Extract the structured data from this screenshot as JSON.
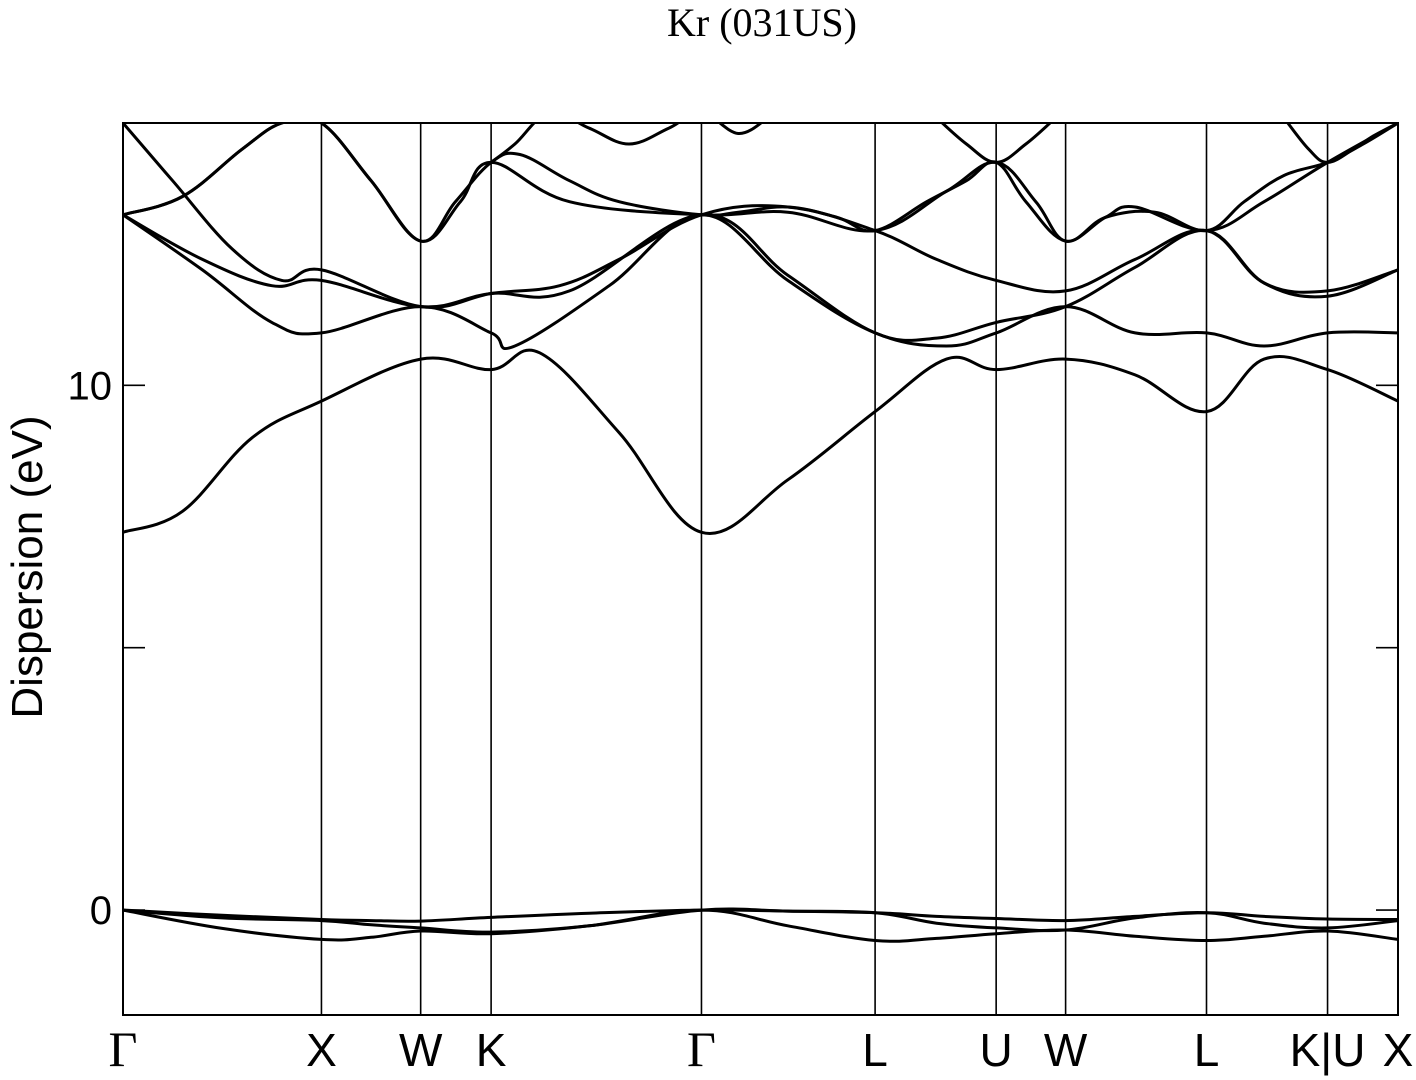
{
  "chart_data": {
    "type": "line",
    "title": "Kr (031US)",
    "ylabel": "Dispersion (eV)",
    "xlabel": "",
    "ylim": [
      -2,
      15
    ],
    "xlim": [
      0,
      12.85
    ],
    "grid": false,
    "y_ticks": [
      {
        "value": 0,
        "label": "0"
      },
      {
        "value": 5,
        "label": ""
      },
      {
        "value": 10,
        "label": "10"
      },
      {
        "value": 15,
        "label": ""
      }
    ],
    "k_points": [
      {
        "x": 0.0,
        "label": "Γ",
        "greek": true
      },
      {
        "x": 2.0,
        "label": "X",
        "greek": false
      },
      {
        "x": 3.0,
        "label": "W",
        "greek": false
      },
      {
        "x": 3.71,
        "label": "K",
        "greek": false
      },
      {
        "x": 5.83,
        "label": "Γ",
        "greek": true
      },
      {
        "x": 7.58,
        "label": "L",
        "greek": false
      },
      {
        "x": 8.8,
        "label": "U",
        "greek": false
      },
      {
        "x": 9.5,
        "label": "W",
        "greek": false
      },
      {
        "x": 10.92,
        "label": "L",
        "greek": false
      },
      {
        "x": 12.14,
        "label": "K|U",
        "greek": false
      },
      {
        "x": 12.85,
        "label": "X",
        "greek": false
      }
    ],
    "series": [
      {
        "name": "band-1",
        "x": [
          0.0,
          1.0,
          2.0,
          2.5,
          3.0,
          3.71,
          4.7,
          5.83,
          6.7,
          7.58,
          8.2,
          8.8,
          9.5,
          10.2,
          10.92,
          11.5,
          12.14,
          12.85
        ],
        "y": [
          0.0,
          -0.35,
          -0.56,
          -0.52,
          -0.4,
          -0.45,
          -0.3,
          0.0,
          -0.3,
          -0.58,
          -0.54,
          -0.45,
          -0.38,
          -0.5,
          -0.58,
          -0.5,
          -0.4,
          -0.56
        ]
      },
      {
        "name": "band-2",
        "x": [
          0.0,
          1.0,
          2.0,
          2.5,
          3.0,
          3.71,
          4.7,
          5.83,
          6.7,
          7.58,
          8.2,
          8.8,
          9.5,
          10.2,
          10.92,
          11.5,
          12.14,
          12.85
        ],
        "y": [
          0.0,
          -0.1,
          -0.18,
          -0.2,
          -0.21,
          -0.14,
          -0.06,
          0.0,
          -0.02,
          -0.05,
          -0.12,
          -0.16,
          -0.2,
          -0.12,
          -0.05,
          -0.12,
          -0.17,
          -0.18
        ]
      },
      {
        "name": "band-3",
        "x": [
          0.0,
          1.0,
          2.0,
          2.5,
          3.0,
          3.71,
          4.7,
          5.83,
          6.7,
          7.58,
          8.2,
          8.8,
          9.5,
          10.2,
          10.92,
          11.5,
          12.14,
          12.85
        ],
        "y": [
          0.0,
          -0.15,
          -0.2,
          -0.28,
          -0.34,
          -0.42,
          -0.3,
          0.0,
          -0.02,
          -0.05,
          -0.25,
          -0.34,
          -0.38,
          -0.15,
          -0.05,
          -0.25,
          -0.34,
          -0.2
        ]
      },
      {
        "name": "band-4",
        "x": [
          0.0,
          0.6,
          1.3,
          2.0,
          3.0,
          3.71,
          4.2,
          5.0,
          5.83,
          6.7,
          7.58,
          8.3,
          8.8,
          9.5,
          10.2,
          10.92,
          11.5,
          12.14,
          12.85
        ],
        "y": [
          7.2,
          7.6,
          9.0,
          9.7,
          10.5,
          10.3,
          10.62,
          9.1,
          7.2,
          8.2,
          9.5,
          10.5,
          10.3,
          10.5,
          10.2,
          9.5,
          10.5,
          10.3,
          9.7
        ]
      },
      {
        "name": "band-5",
        "x": [
          0.0,
          0.8,
          1.5,
          2.0,
          3.0,
          3.71,
          3.95,
          4.9,
          5.83,
          6.7,
          7.58,
          8.3,
          8.8,
          9.5,
          10.2,
          10.92,
          11.5,
          12.14,
          12.85
        ],
        "y": [
          13.25,
          12.2,
          11.2,
          11.0,
          11.5,
          11.0,
          10.75,
          11.9,
          13.25,
          12.0,
          11.0,
          10.75,
          11.0,
          11.5,
          11.0,
          11.0,
          10.75,
          11.0,
          11.0
        ]
      },
      {
        "name": "band-6",
        "x": [
          0.0,
          0.8,
          1.5,
          2.0,
          3.0,
          3.71,
          4.5,
          5.83,
          6.7,
          7.58,
          8.2,
          8.8,
          9.5,
          10.2,
          10.92,
          11.5,
          12.14,
          12.85
        ],
        "y": [
          13.25,
          12.4,
          11.9,
          12.0,
          11.5,
          11.75,
          11.8,
          13.25,
          12.1,
          11.0,
          10.9,
          11.2,
          11.5,
          12.25,
          12.95,
          11.95,
          11.7,
          12.2
        ]
      },
      {
        "name": "band-7",
        "x": [
          0.0,
          0.5,
          1.1,
          1.6,
          2.0,
          3.0,
          3.71,
          4.4,
          5.0,
          5.83,
          6.7,
          7.58,
          8.2,
          8.8,
          9.5,
          10.2,
          10.92,
          11.5,
          12.14,
          12.85
        ],
        "y": [
          15.0,
          13.9,
          12.6,
          12.0,
          12.2,
          11.5,
          11.75,
          11.9,
          12.4,
          13.25,
          13.4,
          12.95,
          12.4,
          12.0,
          11.8,
          12.4,
          12.95,
          11.95,
          11.8,
          12.2
        ]
      },
      {
        "name": "band-8",
        "x": [
          0.0,
          0.6,
          1.2,
          1.6,
          2.0,
          2.5,
          3.0,
          3.4,
          3.71,
          4.5,
          5.83,
          6.7,
          7.58,
          8.3,
          8.8,
          9.2,
          9.5,
          9.9,
          10.2,
          10.92,
          11.5,
          12.14,
          12.85
        ],
        "y": [
          13.25,
          13.6,
          14.5,
          15.0,
          15.0,
          13.9,
          12.75,
          13.5,
          14.25,
          13.5,
          13.25,
          13.3,
          12.95,
          13.7,
          14.25,
          13.5,
          12.75,
          13.2,
          13.4,
          12.95,
          13.5,
          14.25,
          15.0
        ]
      },
      {
        "name": "band-9",
        "x": [
          0.0,
          0.6,
          1.2,
          1.6,
          2.0,
          2.5,
          3.0,
          3.35,
          3.71,
          4.0,
          4.5,
          5.0,
          5.83,
          6.2,
          6.7,
          7.2,
          7.58,
          8.1,
          8.5,
          8.8,
          9.1,
          9.5,
          9.9,
          10.4,
          10.92,
          11.3,
          11.7,
          12.14,
          12.5,
          12.85
        ],
        "y": [
          13.25,
          13.6,
          14.5,
          15.0,
          15.0,
          13.9,
          12.75,
          13.5,
          14.25,
          14.4,
          13.9,
          13.5,
          13.25,
          13.3,
          13.4,
          13.2,
          12.95,
          13.5,
          13.9,
          14.25,
          13.5,
          12.75,
          13.2,
          13.3,
          12.95,
          13.5,
          14.0,
          14.25,
          14.6,
          15.0
        ]
      },
      {
        "name": "band-10",
        "x": [
          3.71,
          3.95,
          4.3,
          4.7,
          5.1,
          5.5,
          5.83,
          6.2,
          6.5
        ],
        "y": [
          14.25,
          14.6,
          15.2,
          14.9,
          14.6,
          14.9,
          15.2,
          14.8,
          15.1
        ]
      },
      {
        "name": "band-11",
        "x": [
          8.2,
          8.5,
          8.8,
          9.1,
          9.4
        ],
        "y": [
          15.1,
          14.6,
          14.25,
          14.6,
          15.1
        ]
      },
      {
        "name": "band-12",
        "x": [
          11.7,
          11.95,
          12.14,
          12.4,
          12.6,
          12.85
        ],
        "y": [
          15.1,
          14.5,
          14.25,
          14.5,
          14.75,
          15.0
        ]
      }
    ]
  }
}
